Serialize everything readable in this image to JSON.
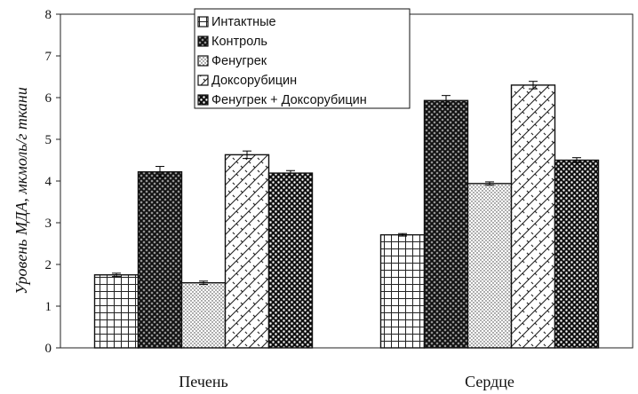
{
  "chart_data": {
    "type": "bar",
    "title": "",
    "xlabel": "",
    "ylabel": "Уровень МДА, мкмоль/г ткани",
    "ylim": [
      0,
      8
    ],
    "yticks": [
      0,
      1,
      2,
      3,
      4,
      5,
      6,
      7,
      8
    ],
    "grid": false,
    "legend_position": "top-center",
    "categories": [
      "Печень",
      "Сердце"
    ],
    "series": [
      {
        "name": "Интактные",
        "values": [
          1.75,
          2.71
        ],
        "errors": [
          0.04,
          0.03
        ],
        "pattern": "grid"
      },
      {
        "name": "Контроль",
        "values": [
          4.22,
          5.93
        ],
        "errors": [
          0.13,
          0.12
        ],
        "pattern": "dense-crosshatch"
      },
      {
        "name": "Фенугрек",
        "values": [
          1.56,
          3.94
        ],
        "errors": [
          0.04,
          0.04
        ],
        "pattern": "dots"
      },
      {
        "name": "Доксорубицин",
        "values": [
          4.63,
          6.3
        ],
        "errors": [
          0.09,
          0.09
        ],
        "pattern": "wave"
      },
      {
        "name": "Фенугрек + Доксорубицин",
        "values": [
          4.19,
          4.5
        ],
        "errors": [
          0.06,
          0.06
        ],
        "pattern": "dark-dots"
      }
    ]
  }
}
